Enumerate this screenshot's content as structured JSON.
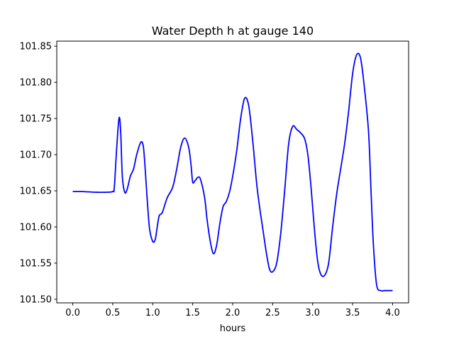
{
  "chart_data": {
    "type": "line",
    "title": "Water Depth h at gauge 140",
    "xlabel": "hours",
    "ylabel": "",
    "xlim": [
      -0.2,
      4.2
    ],
    "ylim": [
      101.495,
      101.857
    ],
    "xticks": [
      0.0,
      0.5,
      1.0,
      1.5,
      2.0,
      2.5,
      3.0,
      3.5,
      4.0
    ],
    "xtick_labels": [
      "0.0",
      "0.5",
      "1.0",
      "1.5",
      "2.0",
      "2.5",
      "3.0",
      "3.5",
      "4.0"
    ],
    "yticks": [
      101.5,
      101.55,
      101.6,
      101.65,
      101.7,
      101.75,
      101.8,
      101.85
    ],
    "ytick_labels": [
      "101.50",
      "101.55",
      "101.60",
      "101.65",
      "101.70",
      "101.75",
      "101.80",
      "101.85"
    ],
    "grid": false,
    "series": [
      {
        "color": "#0000ff",
        "x": [
          0.0,
          0.1,
          0.2,
          0.3,
          0.4,
          0.5,
          0.52,
          0.55,
          0.58,
          0.6,
          0.62,
          0.65,
          0.68,
          0.72,
          0.76,
          0.8,
          0.85,
          0.88,
          0.9,
          0.93,
          0.96,
          1.0,
          1.03,
          1.05,
          1.08,
          1.12,
          1.18,
          1.25,
          1.3,
          1.35,
          1.4,
          1.45,
          1.48,
          1.5,
          1.53,
          1.57,
          1.6,
          1.65,
          1.68,
          1.72,
          1.76,
          1.8,
          1.84,
          1.88,
          1.92,
          1.96,
          2.0,
          2.05,
          2.1,
          2.15,
          2.2,
          2.25,
          2.3,
          2.34,
          2.38,
          2.42,
          2.46,
          2.5,
          2.55,
          2.6,
          2.65,
          2.7,
          2.75,
          2.8,
          2.85,
          2.9,
          2.94,
          2.98,
          3.02,
          3.06,
          3.1,
          3.15,
          3.2,
          3.25,
          3.3,
          3.35,
          3.4,
          3.45,
          3.5,
          3.55,
          3.6,
          3.65,
          3.7,
          3.73,
          3.76,
          3.8,
          3.85,
          3.9,
          3.95,
          4.0
        ],
        "values": [
          101.649,
          101.649,
          101.6485,
          101.648,
          101.648,
          101.649,
          101.655,
          101.71,
          101.751,
          101.73,
          101.67,
          101.648,
          101.652,
          101.67,
          101.68,
          101.7,
          101.717,
          101.713,
          101.69,
          101.64,
          101.598,
          101.58,
          101.582,
          101.595,
          101.615,
          101.62,
          101.64,
          101.655,
          101.68,
          101.71,
          101.723,
          101.71,
          101.685,
          101.662,
          101.664,
          101.669,
          101.665,
          101.64,
          101.61,
          101.58,
          101.563,
          101.575,
          101.605,
          101.628,
          101.635,
          101.648,
          101.67,
          101.705,
          101.75,
          101.778,
          101.768,
          101.72,
          101.66,
          101.625,
          101.595,
          101.565,
          101.542,
          101.538,
          101.55,
          101.59,
          101.65,
          101.715,
          101.739,
          101.735,
          101.73,
          101.722,
          101.7,
          101.655,
          101.6,
          101.555,
          101.535,
          101.533,
          101.55,
          101.6,
          101.645,
          101.68,
          101.715,
          101.76,
          101.812,
          101.838,
          101.833,
          101.79,
          101.73,
          101.65,
          101.575,
          101.52,
          101.512,
          101.512,
          101.512,
          101.512
        ]
      }
    ]
  }
}
